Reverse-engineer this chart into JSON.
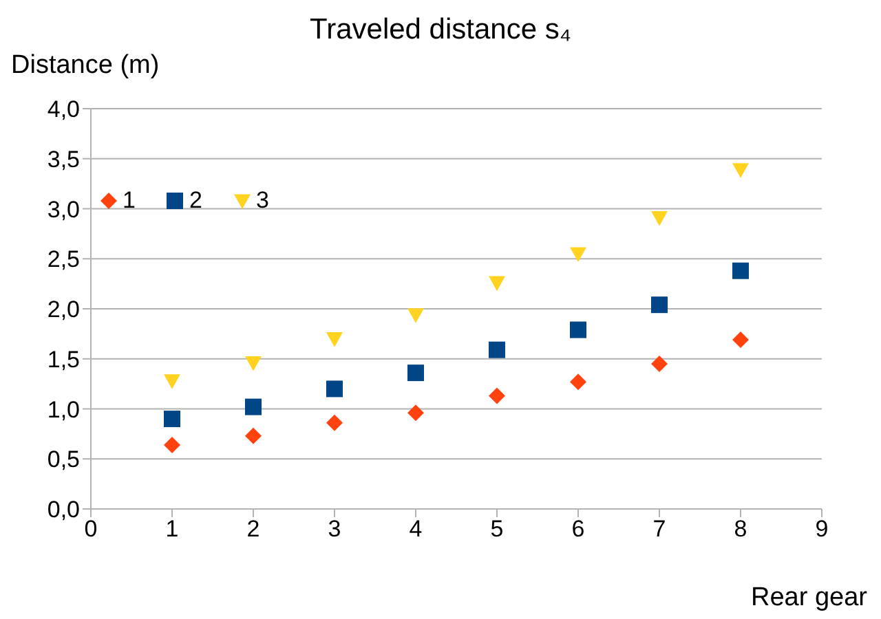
{
  "chart_data": {
    "type": "scatter",
    "title": "Traveled distance s₄",
    "xlabel": "Rear gear",
    "ylabel": "Distance (m)",
    "x": [
      1,
      2,
      3,
      4,
      5,
      6,
      7,
      8
    ],
    "series": [
      {
        "name": "1",
        "color": "#ff420e",
        "marker": "diamond",
        "values": [
          0.64,
          0.73,
          0.86,
          0.96,
          1.13,
          1.27,
          1.45,
          1.69
        ]
      },
      {
        "name": "2",
        "color": "#004586",
        "marker": "square",
        "values": [
          0.9,
          1.02,
          1.2,
          1.36,
          1.59,
          1.79,
          2.04,
          2.38
        ]
      },
      {
        "name": "3",
        "color": "#ffd320",
        "marker": "triangle",
        "values": [
          1.28,
          1.46,
          1.7,
          1.94,
          2.26,
          2.55,
          2.91,
          3.39
        ]
      }
    ],
    "xlim": [
      0,
      9
    ],
    "xticks": [
      0,
      1,
      2,
      3,
      4,
      5,
      6,
      7,
      8,
      9
    ],
    "ylim": [
      0,
      4
    ],
    "yticks": [
      {
        "value": 0,
        "label": "0,0"
      },
      {
        "value": 0.5,
        "label": "0,5"
      },
      {
        "value": 1,
        "label": "1,0"
      },
      {
        "value": 1.5,
        "label": "1,5"
      },
      {
        "value": 2,
        "label": "2,0"
      },
      {
        "value": 2.5,
        "label": "2,5"
      },
      {
        "value": 3,
        "label": "3,0"
      },
      {
        "value": 3.5,
        "label": "3,5"
      },
      {
        "value": 4,
        "label": "4,0"
      }
    ],
    "grid": "y",
    "legend": "top left"
  }
}
